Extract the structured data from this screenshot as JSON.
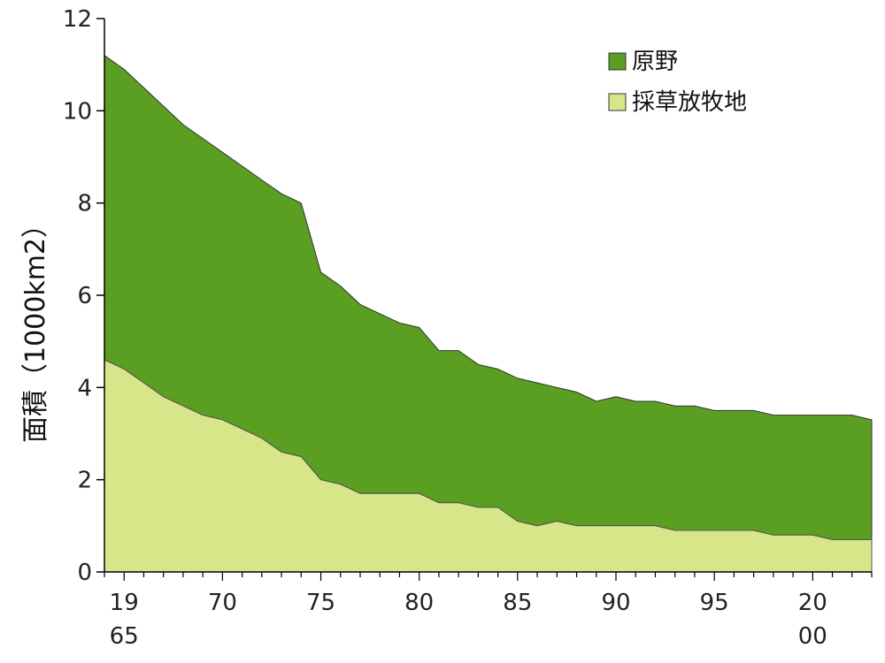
{
  "chart_data": {
    "type": "area",
    "stacked": true,
    "title": "",
    "ylabel": "面積（1000km2）",
    "xlabel": "",
    "x": [
      1964,
      1965,
      1966,
      1967,
      1968,
      1969,
      1970,
      1971,
      1972,
      1973,
      1974,
      1975,
      1976,
      1977,
      1978,
      1979,
      1980,
      1981,
      1982,
      1983,
      1984,
      1985,
      1986,
      1987,
      1988,
      1989,
      1990,
      1991,
      1992,
      1993,
      1994,
      1995,
      1996,
      1997,
      1998,
      1999,
      2000,
      2001,
      2002,
      2003
    ],
    "xlim": [
      1964,
      2003
    ],
    "ylim": [
      0,
      12
    ],
    "yticks": [
      0,
      2,
      4,
      6,
      8,
      10,
      12
    ],
    "xtick_labels": [
      {
        "x": 1965,
        "lines": [
          "19",
          "65"
        ]
      },
      {
        "x": 1970,
        "lines": [
          "70"
        ]
      },
      {
        "x": 1975,
        "lines": [
          "75"
        ]
      },
      {
        "x": 1980,
        "lines": [
          "80"
        ]
      },
      {
        "x": 1985,
        "lines": [
          "85"
        ]
      },
      {
        "x": 1990,
        "lines": [
          "90"
        ]
      },
      {
        "x": 1995,
        "lines": [
          "95"
        ]
      },
      {
        "x": 2000,
        "lines": [
          "20",
          "00"
        ]
      }
    ],
    "grid": false,
    "legend_position": "top-right",
    "series": [
      {
        "name": "採草放牧地",
        "color": "#d8e68a",
        "values": [
          4.6,
          4.4,
          4.1,
          3.8,
          3.6,
          3.4,
          3.3,
          3.1,
          2.9,
          2.6,
          2.5,
          2.0,
          1.9,
          1.7,
          1.7,
          1.7,
          1.7,
          1.5,
          1.5,
          1.4,
          1.4,
          1.1,
          1.0,
          1.1,
          1.0,
          1.0,
          1.0,
          1.0,
          1.0,
          0.9,
          0.9,
          0.9,
          0.9,
          0.9,
          0.8,
          0.8,
          0.8,
          0.7,
          0.7,
          0.7
        ]
      },
      {
        "name": "原野",
        "color": "#5a9e22",
        "stack_total": [
          11.2,
          10.9,
          10.5,
          10.1,
          9.7,
          9.4,
          9.1,
          8.8,
          8.5,
          8.2,
          8.0,
          6.5,
          6.2,
          5.8,
          5.6,
          5.4,
          5.3,
          4.8,
          4.8,
          4.5,
          4.4,
          4.2,
          4.1,
          4.0,
          3.9,
          3.7,
          3.8,
          3.7,
          3.7,
          3.6,
          3.6,
          3.5,
          3.5,
          3.5,
          3.4,
          3.4,
          3.4,
          3.4,
          3.4,
          3.3
        ]
      }
    ]
  }
}
